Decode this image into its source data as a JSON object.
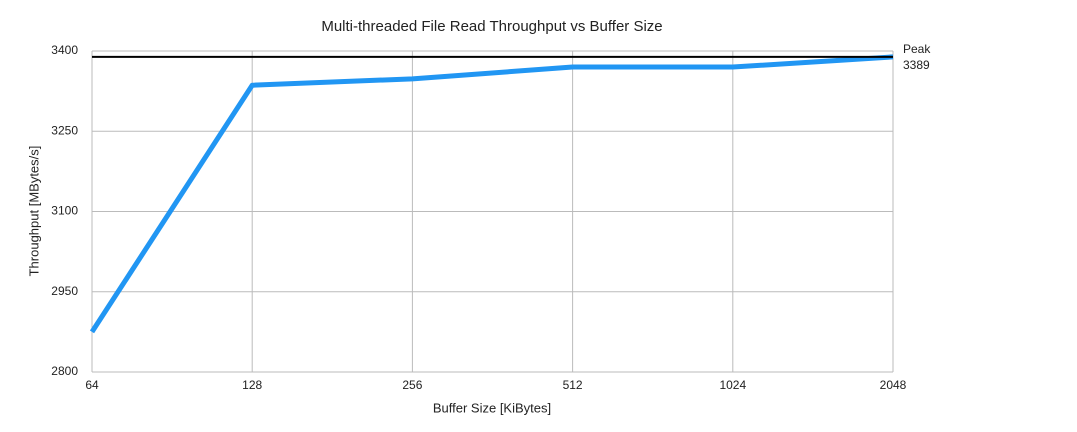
{
  "chart_data": {
    "type": "line",
    "title": "Multi-threaded File Read Throughput vs Buffer Size",
    "x_label": "Buffer Size [KiBytes]",
    "y_label": "Throughput [MBytes/s]",
    "categories": [
      "64",
      "128",
      "256",
      "512",
      "1024",
      "2048"
    ],
    "values": [
      2875,
      3336,
      3348,
      3370,
      3370,
      3389
    ],
    "color": "#2196f3",
    "ylim": [
      2800,
      3400
    ],
    "yticks": [
      2800,
      2950,
      3100,
      3250,
      3400
    ],
    "grid": true,
    "peak": {
      "label": "Peak",
      "value": 3389,
      "color": "#000000"
    }
  }
}
